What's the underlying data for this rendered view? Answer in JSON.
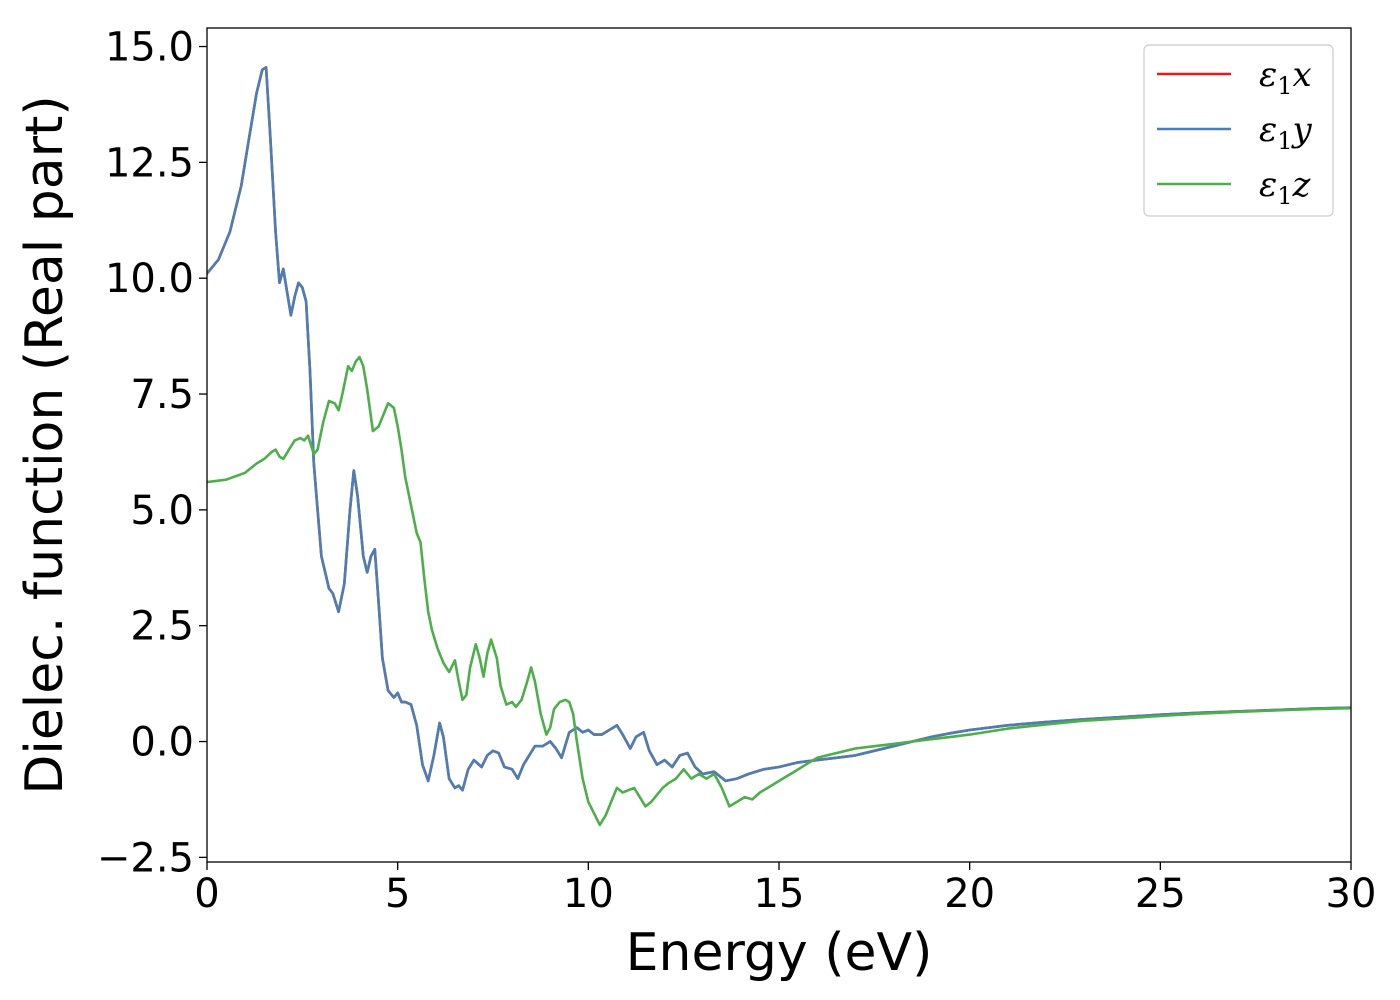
{
  "chart_data": {
    "type": "line",
    "title": "",
    "xlabel": "Energy (eV)",
    "ylabel": "Dielec. function (Real part)",
    "xlim": [
      0,
      30
    ],
    "ylim": [
      -2.6,
      15.4
    ],
    "xticks": [
      0,
      5,
      10,
      15,
      20,
      25,
      30
    ],
    "xtick_labels": [
      "0",
      "5",
      "10",
      "15",
      "20",
      "25",
      "30"
    ],
    "yticks": [
      -2.5,
      0.0,
      2.5,
      5.0,
      7.5,
      10.0,
      12.5,
      15.0
    ],
    "ytick_labels": [
      "−2.5",
      "0.0",
      "2.5",
      "5.0",
      "7.5",
      "10.0",
      "12.5",
      "15.0"
    ],
    "grid": false,
    "legend_position": "top-right",
    "series": [
      {
        "name": "ε₁x",
        "legend_main": "ε",
        "legend_sub": "1",
        "legend_suffix": "x",
        "color": "#e41a1c",
        "x": [
          0,
          0.3,
          0.6,
          0.9,
          1.1,
          1.3,
          1.45,
          1.55,
          1.65,
          1.8,
          1.9,
          2.0,
          2.1,
          2.2,
          2.3,
          2.4,
          2.5,
          2.6,
          2.7,
          2.8,
          3.0,
          3.2,
          3.3,
          3.45,
          3.6,
          3.75,
          3.85,
          3.95,
          4.1,
          4.2,
          4.3,
          4.4,
          4.5,
          4.6,
          4.75,
          4.9,
          5.0,
          5.1,
          5.2,
          5.35,
          5.5,
          5.65,
          5.8,
          5.95,
          6.1,
          6.2,
          6.35,
          6.5,
          6.6,
          6.7,
          6.85,
          7.0,
          7.2,
          7.35,
          7.5,
          7.65,
          7.8,
          8.0,
          8.15,
          8.3,
          8.45,
          8.6,
          8.8,
          9.0,
          9.15,
          9.3,
          9.5,
          9.7,
          9.85,
          10.0,
          10.15,
          10.35,
          10.55,
          10.75,
          10.9,
          11.1,
          11.25,
          11.45,
          11.6,
          11.8,
          12.0,
          12.2,
          12.4,
          12.6,
          12.8,
          13.0,
          13.3,
          13.6,
          13.9,
          14.2,
          14.6,
          15.0,
          15.5,
          16.0,
          16.5,
          17.0,
          17.5,
          18.0,
          18.5,
          19.0,
          19.5,
          20.0,
          21.0,
          22.0,
          23.0,
          24.0,
          25.0,
          26.0,
          27.0,
          28.0,
          29.0,
          30.0
        ],
        "y": [
          10.1,
          10.4,
          11.0,
          12.0,
          13.0,
          14.0,
          14.5,
          14.55,
          13.2,
          11.0,
          9.9,
          10.2,
          9.7,
          9.2,
          9.6,
          9.9,
          9.8,
          9.5,
          8.0,
          6.0,
          4.0,
          3.3,
          3.2,
          2.8,
          3.4,
          5.0,
          5.85,
          5.3,
          4.0,
          3.65,
          4.0,
          4.15,
          3.0,
          1.8,
          1.1,
          0.95,
          1.05,
          0.85,
          0.85,
          0.8,
          0.35,
          -0.5,
          -0.85,
          -0.3,
          0.4,
          0.1,
          -0.8,
          -1.0,
          -0.95,
          -1.05,
          -0.6,
          -0.4,
          -0.55,
          -0.3,
          -0.2,
          -0.25,
          -0.55,
          -0.6,
          -0.8,
          -0.5,
          -0.3,
          -0.1,
          -0.1,
          0.0,
          -0.15,
          -0.35,
          0.2,
          0.3,
          0.2,
          0.25,
          0.15,
          0.15,
          0.25,
          0.35,
          0.15,
          -0.15,
          0.1,
          0.2,
          -0.2,
          -0.5,
          -0.4,
          -0.55,
          -0.3,
          -0.25,
          -0.55,
          -0.7,
          -0.65,
          -0.85,
          -0.8,
          -0.7,
          -0.6,
          -0.55,
          -0.45,
          -0.4,
          -0.35,
          -0.3,
          -0.2,
          -0.1,
          0.0,
          0.1,
          0.18,
          0.25,
          0.35,
          0.42,
          0.48,
          0.53,
          0.58,
          0.62,
          0.65,
          0.68,
          0.71,
          0.73
        ]
      },
      {
        "name": "ε₁y",
        "legend_main": "ε",
        "legend_sub": "1",
        "legend_suffix": "y",
        "color": "#4a7fb5",
        "same_as": 0
      },
      {
        "name": "ε₁z",
        "legend_main": "ε",
        "legend_sub": "1",
        "legend_suffix": "z",
        "color": "#4daf4a",
        "x": [
          0,
          0.5,
          1.0,
          1.3,
          1.5,
          1.7,
          1.8,
          1.9,
          2.0,
          2.15,
          2.3,
          2.45,
          2.55,
          2.65,
          2.8,
          2.9,
          3.05,
          3.2,
          3.35,
          3.45,
          3.55,
          3.7,
          3.8,
          3.9,
          4.0,
          4.1,
          4.2,
          4.35,
          4.5,
          4.6,
          4.75,
          4.9,
          5.0,
          5.1,
          5.2,
          5.35,
          5.5,
          5.6,
          5.7,
          5.8,
          5.9,
          6.05,
          6.2,
          6.35,
          6.5,
          6.6,
          6.7,
          6.8,
          6.9,
          7.05,
          7.15,
          7.25,
          7.35,
          7.45,
          7.6,
          7.7,
          7.85,
          8.0,
          8.1,
          8.25,
          8.4,
          8.5,
          8.6,
          8.75,
          8.9,
          9.0,
          9.1,
          9.25,
          9.4,
          9.5,
          9.6,
          9.7,
          9.85,
          10.0,
          10.15,
          10.3,
          10.45,
          10.6,
          10.75,
          10.9,
          11.05,
          11.2,
          11.35,
          11.5,
          11.65,
          11.8,
          11.95,
          12.1,
          12.3,
          12.5,
          12.7,
          12.9,
          13.1,
          13.3,
          13.5,
          13.7,
          13.9,
          14.1,
          14.3,
          14.5,
          14.8,
          15.1,
          15.4,
          15.7,
          16.0,
          16.5,
          17.0,
          17.5,
          18.0,
          18.5,
          19.0,
          19.5,
          20.0,
          21.0,
          22.0,
          23.0,
          24.0,
          25.0,
          26.0,
          27.0,
          28.0,
          29.0,
          30.0
        ],
        "y": [
          5.6,
          5.65,
          5.8,
          6.0,
          6.1,
          6.25,
          6.3,
          6.15,
          6.1,
          6.3,
          6.5,
          6.55,
          6.5,
          6.6,
          6.2,
          6.3,
          6.9,
          7.35,
          7.3,
          7.15,
          7.5,
          8.1,
          8.0,
          8.2,
          8.3,
          8.1,
          7.6,
          6.7,
          6.8,
          7.0,
          7.3,
          7.2,
          6.8,
          6.3,
          5.7,
          5.1,
          4.5,
          4.3,
          3.5,
          2.8,
          2.4,
          2.0,
          1.7,
          1.5,
          1.75,
          1.3,
          0.9,
          1.0,
          1.6,
          2.1,
          1.8,
          1.4,
          1.9,
          2.2,
          1.8,
          1.2,
          0.8,
          0.85,
          0.75,
          0.9,
          1.3,
          1.6,
          1.3,
          0.6,
          0.15,
          0.3,
          0.7,
          0.85,
          0.9,
          0.85,
          0.6,
          0.0,
          -0.8,
          -1.3,
          -1.55,
          -1.8,
          -1.6,
          -1.3,
          -1.0,
          -1.1,
          -1.05,
          -1.0,
          -1.2,
          -1.4,
          -1.3,
          -1.15,
          -1.0,
          -0.9,
          -0.8,
          -0.6,
          -0.8,
          -0.7,
          -0.8,
          -0.7,
          -1.0,
          -1.4,
          -1.3,
          -1.2,
          -1.25,
          -1.1,
          -0.95,
          -0.8,
          -0.65,
          -0.5,
          -0.35,
          -0.25,
          -0.15,
          -0.1,
          -0.05,
          0.0,
          0.05,
          0.1,
          0.15,
          0.28,
          0.37,
          0.45,
          0.5,
          0.55,
          0.6,
          0.64,
          0.67,
          0.7,
          0.72
        ]
      }
    ]
  }
}
